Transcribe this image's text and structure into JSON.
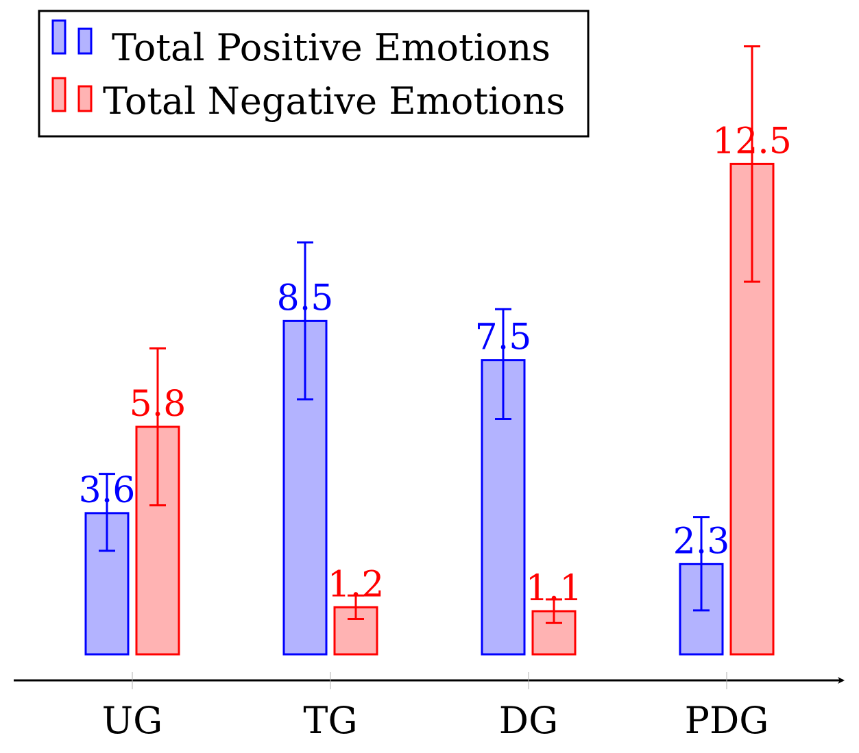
{
  "chart_data": {
    "type": "bar",
    "title": "",
    "xlabel": "",
    "ylabel": "",
    "categories": [
      "UG",
      "TG",
      "DG",
      "PDG"
    ],
    "ylim": [
      0,
      13.5
    ],
    "grid": false,
    "legend_position": "top-left",
    "series": [
      {
        "name": "Total Positive Emotions",
        "color": "#0000ff",
        "fill": "#b3b3ff",
        "values": [
          3.6,
          8.5,
          7.5,
          2.3
        ],
        "value_labels": [
          "3.6",
          "8.5",
          "7.5",
          "2.3"
        ],
        "error_low": [
          2.64,
          6.5,
          6.0,
          1.12
        ],
        "error_high": [
          4.6,
          10.5,
          8.8,
          3.5
        ]
      },
      {
        "name": "Total Negative Emotions",
        "color": "#ff0000",
        "fill": "#ffb3b3",
        "values": [
          5.8,
          1.2,
          1.1,
          12.5
        ],
        "value_labels": [
          "5.8",
          "1.2",
          "1.1",
          "12.5"
        ],
        "error_low": [
          3.8,
          0.9,
          0.8,
          9.5
        ],
        "error_high": [
          7.8,
          1.5,
          1.4,
          15.5
        ]
      }
    ]
  }
}
